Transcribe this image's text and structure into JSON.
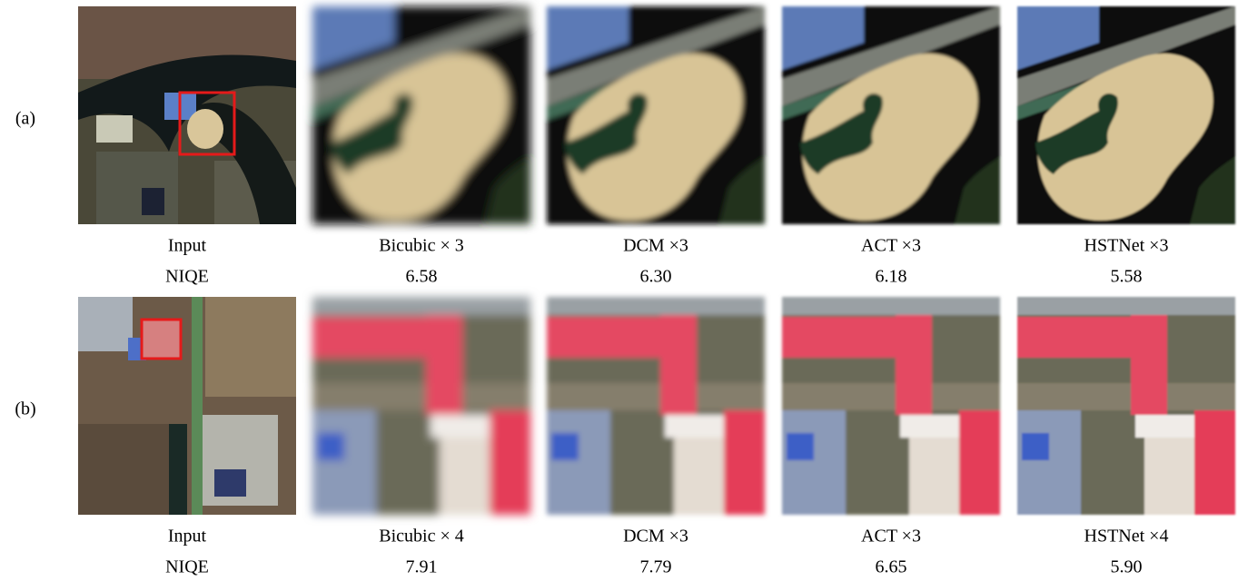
{
  "rows": [
    {
      "label": "(a)",
      "panels": [
        {
          "caption": "Input",
          "score": "NIQE"
        },
        {
          "caption": "Bicubic × 3",
          "score": "6.58"
        },
        {
          "caption": "DCM ×3",
          "score": "6.30"
        },
        {
          "caption": "ACT ×3",
          "score": "6.18"
        },
        {
          "caption": "HSTNet ×3",
          "score": "5.58"
        }
      ]
    },
    {
      "label": "(b)",
      "panels": [
        {
          "caption": "Input",
          "score": "NIQE"
        },
        {
          "caption": "Bicubic × 4",
          "score": "7.91"
        },
        {
          "caption": "DCM ×3",
          "score": "7.79"
        },
        {
          "caption": "ACT ×3",
          "score": "6.65"
        },
        {
          "caption": "HSTNet ×4",
          "score": "5.90"
        }
      ]
    }
  ]
}
